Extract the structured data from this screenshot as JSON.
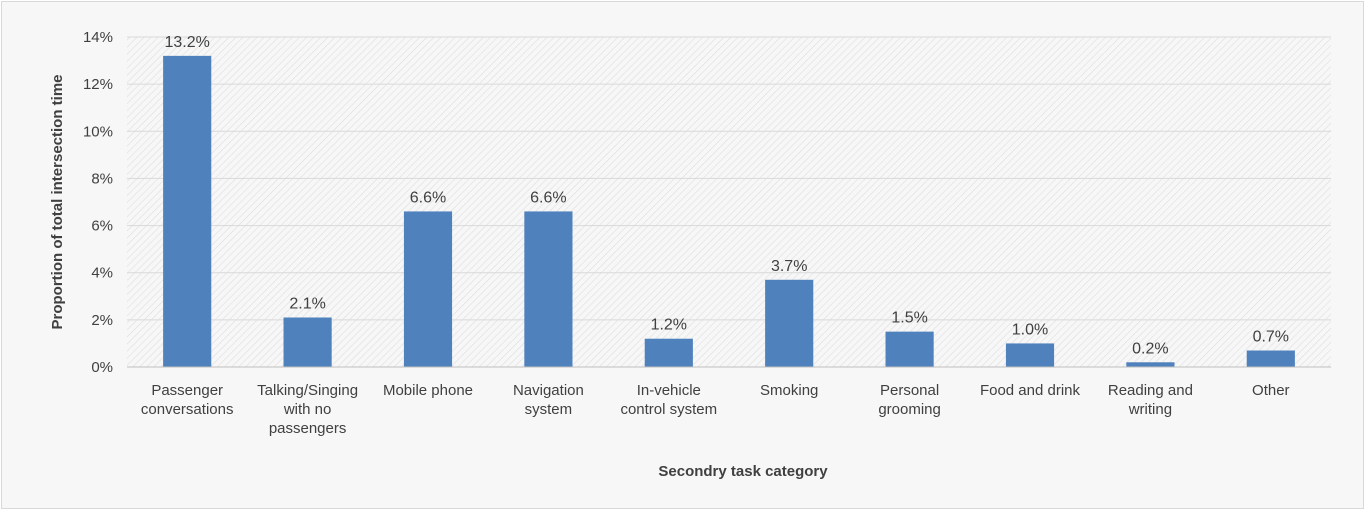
{
  "chart_data": {
    "type": "bar",
    "title": "",
    "xlabel": "Secondry task category",
    "ylabel": "Proportion of total intersection time",
    "categories": [
      [
        "Passenger",
        "conversations"
      ],
      [
        "Talking/Singing",
        "with no",
        "passengers"
      ],
      [
        "Mobile phone"
      ],
      [
        "Navigation",
        "system"
      ],
      [
        "In-vehicle",
        "control system"
      ],
      [
        "Smoking"
      ],
      [
        "Personal",
        "grooming"
      ],
      [
        "Food and drink"
      ],
      [
        "Reading and",
        "writing"
      ],
      [
        "Other"
      ]
    ],
    "values": [
      13.2,
      2.1,
      6.6,
      6.6,
      1.2,
      3.7,
      1.5,
      1.0,
      0.2,
      0.7
    ],
    "data_labels": [
      "13.2%",
      "2.1%",
      "6.6%",
      "6.6%",
      "1.2%",
      "3.7%",
      "1.5%",
      "1.0%",
      "0.2%",
      "0.7%"
    ],
    "ylim": [
      0,
      14
    ],
    "yticks": [
      "0%",
      "2%",
      "4%",
      "6%",
      "8%",
      "10%",
      "12%",
      "14%"
    ],
    "grid": true,
    "legend": "none",
    "colors": {
      "bar": "#4f81bd",
      "grid": "#d9d9d9",
      "text": "#404040",
      "plot_background": "#f7f7f7"
    }
  }
}
